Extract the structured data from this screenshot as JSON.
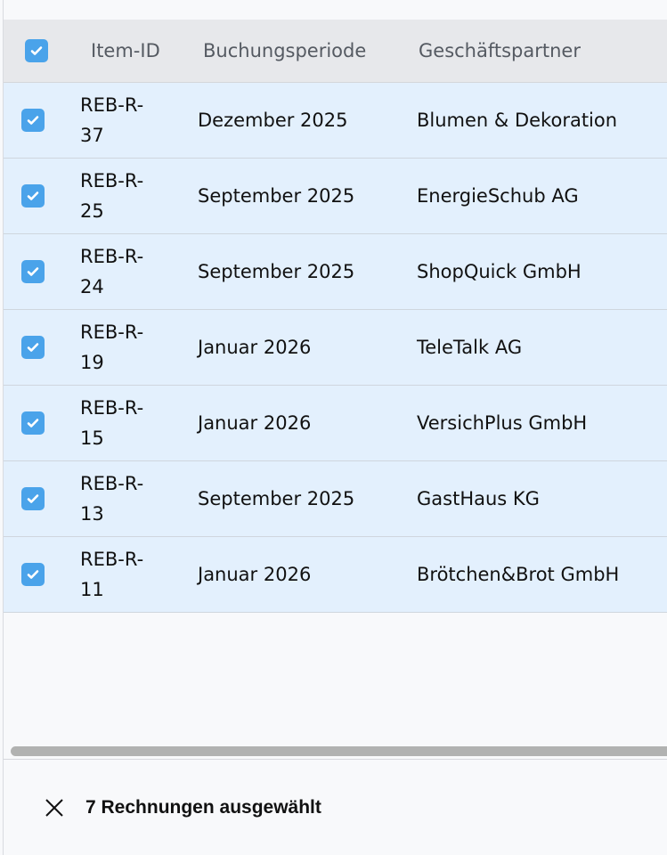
{
  "table": {
    "columns": [
      "Item-ID",
      "Buchungsperiode",
      "Geschäftspartner"
    ],
    "rows": [
      {
        "id": "REB-R-37",
        "period": "Dezember 2025",
        "partner": "Blumen & Dekoration",
        "checked": true
      },
      {
        "id": "REB-R-25",
        "period": "September 2025",
        "partner": "EnergieSchub AG",
        "checked": true
      },
      {
        "id": "REB-R-24",
        "period": "September 2025",
        "partner": "ShopQuick GmbH",
        "checked": true
      },
      {
        "id": "REB-R-19",
        "period": "Januar 2026",
        "partner": "TeleTalk AG",
        "checked": true
      },
      {
        "id": "REB-R-15",
        "period": "Januar 2026",
        "partner": "VersichPlus GmbH",
        "checked": true
      },
      {
        "id": "REB-R-13",
        "period": "September 2025",
        "partner": "GastHaus KG",
        "checked": true
      },
      {
        "id": "REB-R-11",
        "period": "Januar 2026",
        "partner": "Brötchen&Brot GmbH",
        "checked": true
      }
    ]
  },
  "footer": {
    "selection_label": "7 Rechnungen ausgewählt",
    "close_icon": "close-icon"
  },
  "colors": {
    "checkbox": "#4aa3ea",
    "selected_row": "#e3f0fd",
    "header": "#e7e8eb"
  }
}
